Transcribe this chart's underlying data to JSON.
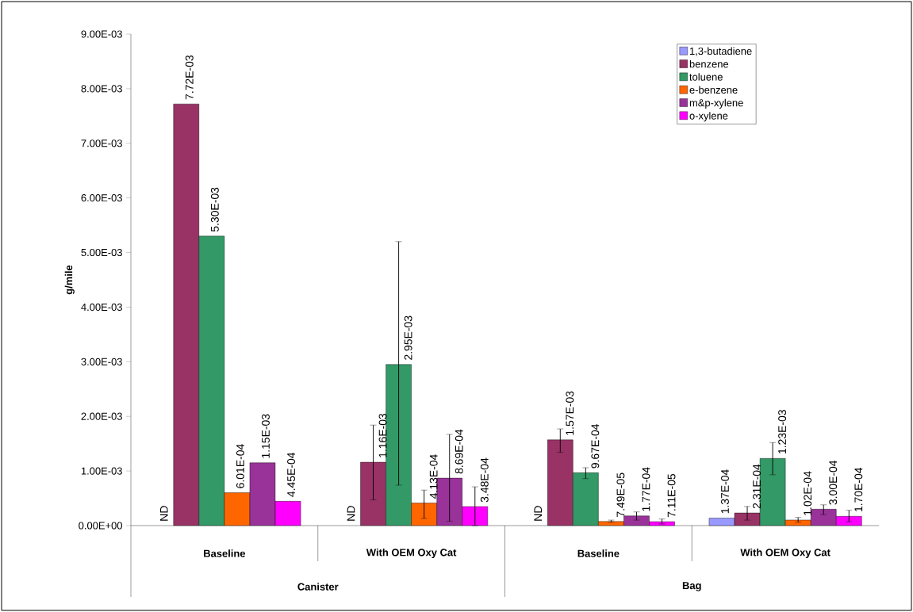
{
  "chart_data": {
    "type": "bar",
    "ylabel": "g/mile",
    "categories": [
      "Baseline",
      "With OEM Oxy Cat",
      "Baseline",
      "With OEM Oxy Cat"
    ],
    "annotations": [
      "Canister",
      "Bag"
    ],
    "ylim": [
      0,
      0.009
    ],
    "yticks": [
      {
        "value": 0,
        "label": "0.00E+00"
      },
      {
        "value": 0.001,
        "label": "1.00E-03"
      },
      {
        "value": 0.002,
        "label": "2.00E-03"
      },
      {
        "value": 0.003,
        "label": "3.00E-03"
      },
      {
        "value": 0.004,
        "label": "4.00E-03"
      },
      {
        "value": 0.005,
        "label": "5.00E-03"
      },
      {
        "value": 0.006,
        "label": "6.00E-03"
      },
      {
        "value": 0.007,
        "label": "7.00E-03"
      },
      {
        "value": 0.008,
        "label": "8.00E-03"
      },
      {
        "value": 0.009,
        "label": "9.00E-03"
      }
    ],
    "grid": false,
    "legend": "top right",
    "series": [
      {
        "name": "1,3-butadiene",
        "color": "#9999ff",
        "values": [
          null,
          null,
          null,
          0.000137
        ],
        "value_labels": [
          "ND",
          "ND",
          "ND",
          "1.37E-04"
        ],
        "errors": [
          null,
          null,
          null,
          null
        ]
      },
      {
        "name": "benzene",
        "color": "#993366",
        "values": [
          0.00772,
          0.00116,
          0.00157,
          0.000231
        ],
        "value_labels": [
          "7.72E-03",
          "1.16E-03",
          "1.57E-03",
          "2.31E-04"
        ],
        "errors": [
          null,
          [
            0.00047,
            0.00184
          ],
          [
            0.00134,
            0.00177
          ],
          [
            0.0001,
            0.00035
          ]
        ]
      },
      {
        "name": "toluene",
        "color": "#339966",
        "values": [
          0.0053,
          0.00295,
          0.000967,
          0.00123
        ],
        "value_labels": [
          "5.30E-03",
          "2.95E-03",
          "9.67E-04",
          "1.23E-03"
        ],
        "errors": [
          null,
          [
            0.00074,
            0.0052
          ],
          [
            0.00086,
            0.00106
          ],
          [
            0.00093,
            0.00152
          ]
        ]
      },
      {
        "name": "e-benzene",
        "color": "#ff6600",
        "values": [
          0.000601,
          0.000413,
          7.49e-05,
          0.000102
        ],
        "value_labels": [
          "6.01E-04",
          "4.13E-04",
          "7.49E-05",
          "1.02E-04"
        ],
        "errors": [
          null,
          [
            0.00013,
            0.00065
          ],
          [
            6e-05,
            0.0001
          ],
          [
            6e-05,
            0.00015
          ]
        ]
      },
      {
        "name": "m&p-xylene",
        "color": "#993399",
        "values": [
          0.00115,
          0.000869,
          0.000177,
          0.0003
        ],
        "value_labels": [
          "1.15E-03",
          "8.69E-04",
          "1.77E-04",
          "3.00E-04"
        ],
        "errors": [
          null,
          [
            8e-05,
            0.00167
          ],
          [
            0.0001,
            0.00025
          ],
          [
            0.0002,
            0.00038
          ]
        ]
      },
      {
        "name": "o-xylene",
        "color": "#ff00ff",
        "values": [
          0.000445,
          0.000348,
          7.11e-05,
          0.00017
        ],
        "value_labels": [
          "4.45E-04",
          "3.48E-04",
          "7.11E-05",
          "1.70E-04"
        ],
        "errors": [
          null,
          [
            0.0,
            0.00071
          ],
          [
            3e-05,
            0.00012
          ],
          [
            7e-05,
            0.00028
          ]
        ]
      }
    ]
  }
}
